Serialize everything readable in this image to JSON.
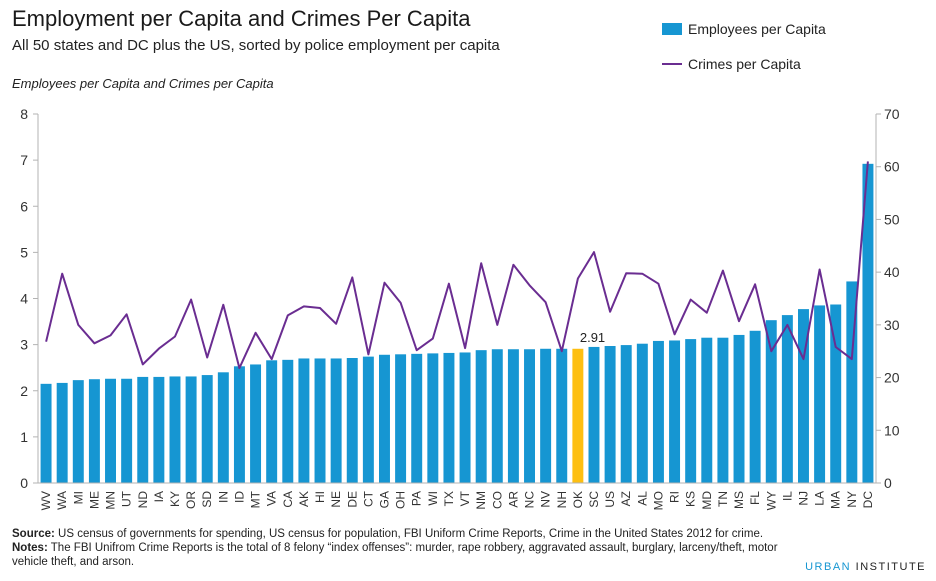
{
  "header": {
    "title": "Employment per Capita and Crimes Per Capita",
    "subtitle": "All 50 states and DC plus the US, sorted by police employment per capita"
  },
  "footer": {
    "source_label": "Source:",
    "source_text": "US census of governments for spending, US census for population, FBI Uniform Crime Reports, Crime in the United States 2012 for crime.",
    "notes_label": "Notes:",
    "notes_text": "The FBI Unifrom Crime Reports is the total of 8 felony “index offenses”: murder, rape robbery, aggravated assault, burglary, larceny/theft, motor vehicle theft, and arson.",
    "brand_part1": "URBAN",
    "brand_part2": " INSTITUTE"
  },
  "colors": {
    "bar": "#1696d2",
    "highlight_bar": "#fdbf11",
    "line": "#6a2d91",
    "axis": "#b3b3b3"
  },
  "chart_data": {
    "type": "bar",
    "title": "Employment per Capita and Crimes Per Capita",
    "subtitle": "All 50 states and DC plus the US, sorted by police employment per capita",
    "ylabel": "Employees per Capita  and Crimes per Capita",
    "ylim": [
      0,
      8
    ],
    "yticks": [
      0,
      1,
      2,
      3,
      4,
      5,
      6,
      7,
      8
    ],
    "y2lim": [
      0,
      70
    ],
    "y2ticks": [
      0,
      10,
      20,
      30,
      40,
      50,
      60,
      70
    ],
    "grid": false,
    "legend_position": "top-right",
    "highlight_category": "OK",
    "annotation": {
      "category": "OK",
      "text": "2.91"
    },
    "categories": [
      "WV",
      "WA",
      "MI",
      "ME",
      "MN",
      "UT",
      "ND",
      "IA",
      "KY",
      "OR",
      "SD",
      "IN",
      "ID",
      "MT",
      "VA",
      "CA",
      "AK",
      "HI",
      "NE",
      "DE",
      "CT",
      "GA",
      "OH",
      "PA",
      "WI",
      "TX",
      "VT",
      "NM",
      "CO",
      "AR",
      "NC",
      "NV",
      "NH",
      "OK",
      "SC",
      "US",
      "AZ",
      "AL",
      "MO",
      "RI",
      "KS",
      "MD",
      "TN",
      "MS",
      "FL",
      "WY",
      "IL",
      "NJ",
      "LA",
      "MA",
      "NY",
      "DC"
    ],
    "series": [
      {
        "name": "Employees per Capita",
        "type": "bar",
        "axis": "left",
        "values": [
          2.15,
          2.17,
          2.23,
          2.25,
          2.26,
          2.26,
          2.3,
          2.3,
          2.31,
          2.31,
          2.34,
          2.4,
          2.53,
          2.57,
          2.66,
          2.67,
          2.7,
          2.7,
          2.7,
          2.71,
          2.74,
          2.78,
          2.79,
          2.8,
          2.81,
          2.82,
          2.83,
          2.88,
          2.9,
          2.9,
          2.9,
          2.91,
          2.91,
          2.91,
          2.95,
          2.97,
          2.99,
          3.02,
          3.08,
          3.09,
          3.12,
          3.15,
          3.15,
          3.21,
          3.3,
          3.53,
          3.64,
          3.77,
          3.85,
          3.87,
          4.37,
          6.92
        ]
      },
      {
        "name": "Crimes per Capita",
        "type": "line",
        "axis": "right",
        "values": [
          26.8,
          39.7,
          30.0,
          26.5,
          28.0,
          32.0,
          22.5,
          25.5,
          27.8,
          34.8,
          23.8,
          33.8,
          21.8,
          28.5,
          23.5,
          31.8,
          33.5,
          33.2,
          30.2,
          39.0,
          24.4,
          38.0,
          34.2,
          25.2,
          27.4,
          37.8,
          25.6,
          41.7,
          30.0,
          41.4,
          37.5,
          34.3,
          25.0,
          38.8,
          43.8,
          32.5,
          39.8,
          39.7,
          37.8,
          28.2,
          34.8,
          32.3,
          40.3,
          30.7,
          37.7,
          25.0,
          30.0,
          23.5,
          40.5,
          25.8,
          23.5,
          61.0
        ]
      }
    ]
  }
}
